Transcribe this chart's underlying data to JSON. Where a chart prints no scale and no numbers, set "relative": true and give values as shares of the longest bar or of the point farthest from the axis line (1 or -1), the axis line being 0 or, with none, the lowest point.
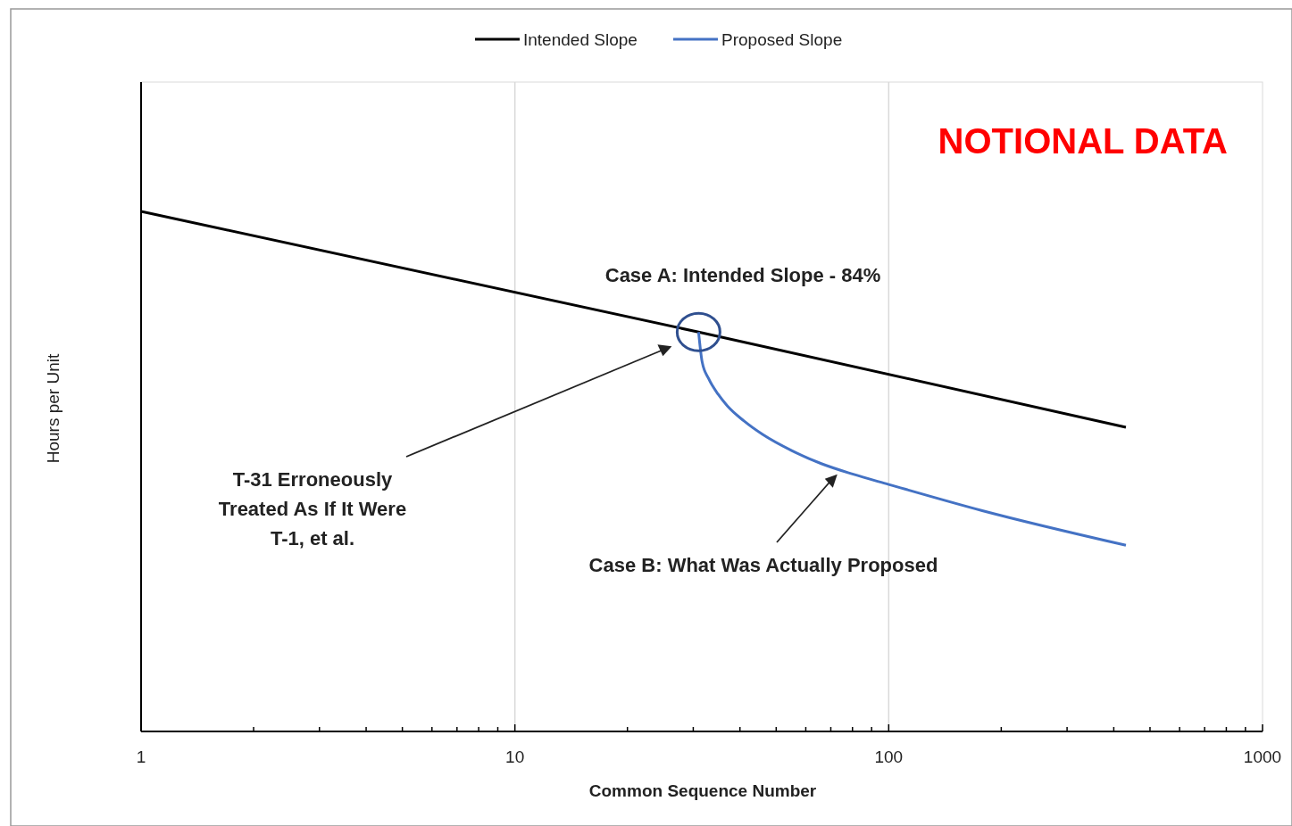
{
  "chart_data": {
    "type": "line",
    "xlabel": "Common Sequence Number",
    "ylabel": "Hours per Unit",
    "relative": true,
    "log": "x",
    "xlim": [
      1,
      1000
    ],
    "xticks": [
      1,
      {
        "value": 2,
        "label": null
      },
      {
        "value": 3,
        "label": null
      },
      {
        "value": 4,
        "label": null
      },
      {
        "value": 5,
        "label": null
      },
      {
        "value": 6,
        "label": null
      },
      {
        "value": 7,
        "label": null
      },
      {
        "value": 8,
        "label": null
      },
      {
        "value": 9,
        "label": null
      },
      10,
      {
        "value": 20,
        "label": null
      },
      {
        "value": 30,
        "label": null
      },
      {
        "value": 40,
        "label": null
      },
      {
        "value": 50,
        "label": null
      },
      {
        "value": 60,
        "label": null
      },
      {
        "value": 70,
        "label": null
      },
      {
        "value": 80,
        "label": null
      },
      {
        "value": 90,
        "label": null
      },
      100,
      {
        "value": 200,
        "label": null
      },
      {
        "value": 300,
        "label": null
      },
      {
        "value": 400,
        "label": null
      },
      {
        "value": 500,
        "label": null
      },
      {
        "value": 600,
        "label": null
      },
      {
        "value": 700,
        "label": null
      },
      {
        "value": 800,
        "label": null
      },
      {
        "value": 900,
        "label": null
      },
      1000
    ],
    "grid": "x",
    "legend": "top",
    "line_style": "solid",
    "series": [
      {
        "name": "Intended Slope",
        "color": "#000000",
        "x": [
          1,
          31,
          431
        ],
        "values": [
          1,
          0.768,
          0.585
        ]
      },
      {
        "name": "Proposed Slope",
        "color": "#4472c4",
        "x": [
          31,
          31.7,
          33,
          35,
          37,
          41,
          46,
          55,
          66,
          80,
          100,
          177,
          431
        ],
        "values": [
          0.768,
          0.71,
          0.678,
          0.648,
          0.626,
          0.597,
          0.571,
          0.54,
          0.515,
          0.495,
          0.475,
          0.425,
          0.358
        ]
      }
    ],
    "annotations": [
      "NOTIONAL DATA",
      "Case A: Intended Slope - 84%",
      "T-31 Erroneously\nTreated As If It Were\nT-1, et al.",
      "Case B: What Was Actually Proposed"
    ]
  }
}
